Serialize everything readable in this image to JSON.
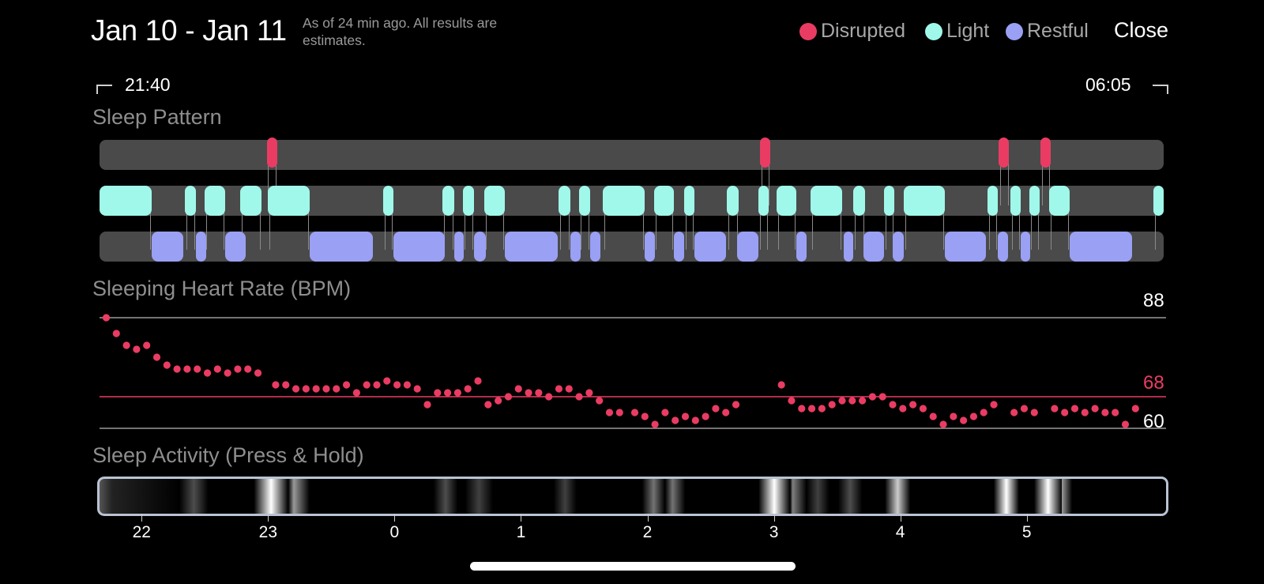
{
  "header": {
    "title": "Jan 10 - Jan 11",
    "subtitle": "As of 24 min ago. All results are estimates.",
    "close_label": "Close"
  },
  "legend": [
    {
      "label": "Disrupted",
      "color": "#ea3c63"
    },
    {
      "label": "Light",
      "color": "#a0f8ea"
    },
    {
      "label": "Restful",
      "color": "#9aa0f4"
    }
  ],
  "time_range": {
    "start": "21:40",
    "end": "06:05"
  },
  "sleep_pattern": {
    "title": "Sleep Pattern",
    "start_hour": 21.667,
    "end_hour": 30.083,
    "disrupted": [
      [
        22.99,
        23.07
      ],
      [
        26.89,
        26.97
      ],
      [
        28.78,
        28.86
      ],
      [
        29.11,
        29.19
      ]
    ],
    "light": [
      [
        21.67,
        22.08
      ],
      [
        22.34,
        22.43
      ],
      [
        22.5,
        22.66
      ],
      [
        22.78,
        22.95
      ],
      [
        23.0,
        23.33
      ],
      [
        23.91,
        23.99
      ],
      [
        24.38,
        24.47
      ],
      [
        24.54,
        24.63
      ],
      [
        24.71,
        24.87
      ],
      [
        25.3,
        25.39
      ],
      [
        25.46,
        25.55
      ],
      [
        25.65,
        25.98
      ],
      [
        26.05,
        26.21
      ],
      [
        26.29,
        26.37
      ],
      [
        26.63,
        26.72
      ],
      [
        26.88,
        26.96
      ],
      [
        27.02,
        27.18
      ],
      [
        27.29,
        27.54
      ],
      [
        27.63,
        27.72
      ],
      [
        27.87,
        27.95
      ],
      [
        28.03,
        28.35
      ],
      [
        28.69,
        28.77
      ],
      [
        28.87,
        28.95
      ],
      [
        29.02,
        29.1
      ],
      [
        29.18,
        29.34
      ],
      [
        30.0,
        30.083
      ]
    ],
    "restful": [
      [
        22.08,
        22.33
      ],
      [
        22.43,
        22.51
      ],
      [
        22.66,
        22.82
      ],
      [
        23.33,
        23.83
      ],
      [
        23.99,
        24.4
      ],
      [
        24.47,
        24.55
      ],
      [
        24.63,
        24.72
      ],
      [
        24.87,
        25.29
      ],
      [
        25.39,
        25.47
      ],
      [
        25.55,
        25.63
      ],
      [
        25.98,
        26.06
      ],
      [
        26.21,
        26.29
      ],
      [
        26.37,
        26.62
      ],
      [
        26.71,
        26.88
      ],
      [
        27.18,
        27.26
      ],
      [
        27.55,
        27.63
      ],
      [
        27.71,
        27.87
      ],
      [
        27.94,
        28.03
      ],
      [
        28.35,
        28.68
      ],
      [
        28.77,
        28.85
      ],
      [
        28.95,
        29.03
      ],
      [
        29.34,
        29.83
      ]
    ]
  },
  "heart_rate": {
    "title": "Sleeping Heart Rate (BPM)",
    "max_label": "88",
    "avg_label": "68",
    "min_label": "60",
    "max": 88,
    "avg": 68,
    "min": 60,
    "points": [
      [
        21.72,
        88
      ],
      [
        21.8,
        84
      ],
      [
        21.88,
        81
      ],
      [
        21.96,
        80
      ],
      [
        22.04,
        81
      ],
      [
        22.12,
        78
      ],
      [
        22.2,
        76
      ],
      [
        22.28,
        75
      ],
      [
        22.36,
        75
      ],
      [
        22.44,
        75
      ],
      [
        22.52,
        74
      ],
      [
        22.6,
        75
      ],
      [
        22.68,
        74
      ],
      [
        22.76,
        75
      ],
      [
        22.84,
        75
      ],
      [
        22.92,
        74
      ],
      [
        23.06,
        71
      ],
      [
        23.14,
        71
      ],
      [
        23.22,
        70
      ],
      [
        23.3,
        70
      ],
      [
        23.38,
        70
      ],
      [
        23.46,
        70
      ],
      [
        23.54,
        70
      ],
      [
        23.62,
        71
      ],
      [
        23.7,
        69
      ],
      [
        23.78,
        71
      ],
      [
        23.86,
        71
      ],
      [
        23.94,
        72
      ],
      [
        24.02,
        71
      ],
      [
        24.1,
        71
      ],
      [
        24.18,
        70
      ],
      [
        24.26,
        66
      ],
      [
        24.34,
        69
      ],
      [
        24.42,
        69
      ],
      [
        24.5,
        69
      ],
      [
        24.58,
        70
      ],
      [
        24.66,
        72
      ],
      [
        24.74,
        66
      ],
      [
        24.82,
        67
      ],
      [
        24.9,
        68
      ],
      [
        24.98,
        70
      ],
      [
        25.06,
        69
      ],
      [
        25.14,
        69
      ],
      [
        25.22,
        68
      ],
      [
        25.3,
        70
      ],
      [
        25.38,
        70
      ],
      [
        25.46,
        68
      ],
      [
        25.54,
        69
      ],
      [
        25.62,
        67
      ],
      [
        25.7,
        64
      ],
      [
        25.78,
        64
      ],
      [
        25.9,
        64
      ],
      [
        25.98,
        63
      ],
      [
        26.06,
        61
      ],
      [
        26.14,
        64
      ],
      [
        26.22,
        62
      ],
      [
        26.3,
        63
      ],
      [
        26.38,
        62
      ],
      [
        26.46,
        63
      ],
      [
        26.54,
        65
      ],
      [
        26.62,
        64
      ],
      [
        26.7,
        66
      ],
      [
        27.06,
        71
      ],
      [
        27.14,
        67
      ],
      [
        27.22,
        65
      ],
      [
        27.3,
        65
      ],
      [
        27.38,
        65
      ],
      [
        27.46,
        66
      ],
      [
        27.54,
        67
      ],
      [
        27.62,
        67
      ],
      [
        27.7,
        67
      ],
      [
        27.78,
        68
      ],
      [
        27.86,
        68
      ],
      [
        27.94,
        66
      ],
      [
        28.02,
        65
      ],
      [
        28.1,
        66
      ],
      [
        28.18,
        65
      ],
      [
        28.26,
        63
      ],
      [
        28.34,
        61
      ],
      [
        28.42,
        63
      ],
      [
        28.5,
        62
      ],
      [
        28.58,
        63
      ],
      [
        28.66,
        64
      ],
      [
        28.74,
        66
      ],
      [
        28.9,
        64
      ],
      [
        28.98,
        65
      ],
      [
        29.06,
        64
      ],
      [
        29.22,
        65
      ],
      [
        29.3,
        64
      ],
      [
        29.38,
        65
      ],
      [
        29.46,
        64
      ],
      [
        29.54,
        65
      ],
      [
        29.62,
        64
      ],
      [
        29.7,
        64
      ],
      [
        29.78,
        61
      ],
      [
        29.86,
        65
      ]
    ]
  },
  "sleep_activity": {
    "title": "Sleep Activity (Press & Hold)",
    "ticks": [
      "22",
      "23",
      "0",
      "1",
      "2",
      "3",
      "4",
      "5"
    ],
    "tick_hours": [
      22,
      23,
      24,
      25,
      26,
      27,
      28,
      29
    ]
  }
}
